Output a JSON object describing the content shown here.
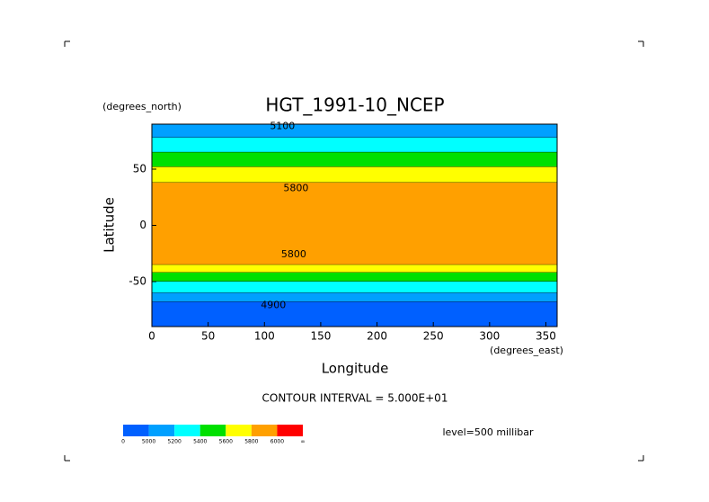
{
  "chart_data": {
    "type": "contour",
    "title": "HGT_1991-10_NCEP",
    "y_unit": "(degrees_north)",
    "x_unit": "(degrees_east)",
    "xlabel": "Longitude",
    "ylabel": "Latitude",
    "xlim": [
      0,
      360
    ],
    "ylim": [
      -90,
      90
    ],
    "xticks": [
      0,
      50,
      100,
      150,
      200,
      250,
      300,
      350
    ],
    "yticks": [
      50,
      0,
      -50
    ],
    "zones": [
      {
        "from": 90,
        "to": 78,
        "color": "#00a0ff"
      },
      {
        "from": 78,
        "to": 65,
        "color": "#00ffff"
      },
      {
        "from": 65,
        "to": 52,
        "color": "#00e000"
      },
      {
        "from": 52,
        "to": 38,
        "color": "#ffff00"
      },
      {
        "from": 38,
        "to": -35,
        "color": "#ffa000"
      },
      {
        "from": -35,
        "to": -42,
        "color": "#ffff00"
      },
      {
        "from": -42,
        "to": -50,
        "color": "#00e000"
      },
      {
        "from": -50,
        "to": -60,
        "color": "#00ffff"
      },
      {
        "from": -60,
        "to": -68,
        "color": "#00a0ff"
      },
      {
        "from": -68,
        "to": -90,
        "color": "#0060ff"
      }
    ],
    "contour_labels": [
      {
        "value": 5100,
        "lon": 116,
        "lat": 88
      },
      {
        "value": 5800,
        "lon": 128,
        "lat": 33
      },
      {
        "value": 5800,
        "lon": 126,
        "lat": -26
      },
      {
        "value": 4900,
        "lon": 108,
        "lat": -71
      }
    ],
    "contour_interval": "CONTOUR INTERVAL = 5.000E+01",
    "level": "level=500 millibar",
    "colorbar": {
      "colors": [
        "#0060ff",
        "#00a0ff",
        "#00ffff",
        "#00e000",
        "#ffff00",
        "#ffa000",
        "#ff0000"
      ],
      "ticks": [
        {
          "value": 0,
          "label": "0"
        },
        5000,
        5200,
        5400,
        5600,
        5800,
        6000,
        {
          "value": 7,
          "label": "∞"
        }
      ]
    }
  }
}
